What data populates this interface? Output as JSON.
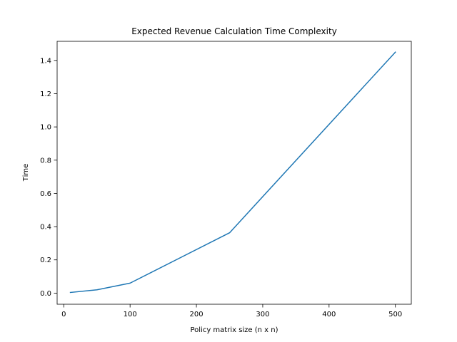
{
  "chart_data": {
    "type": "line",
    "title": "Expected Revenue Calculation Time Complexity",
    "xlabel": "Policy matrix size (n x n)",
    "ylabel": "Time",
    "xlim": [
      -10,
      524
    ],
    "ylim": [
      -0.067,
      1.515
    ],
    "xticks": [
      0,
      100,
      200,
      300,
      400,
      500
    ],
    "yticks": [
      0.0,
      0.2,
      0.4,
      0.6,
      0.8,
      1.0,
      1.2,
      1.4
    ],
    "xtick_labels": [
      "0",
      "100",
      "200",
      "300",
      "400",
      "500"
    ],
    "ytick_labels": [
      "0.0",
      "0.2",
      "0.4",
      "0.6",
      "0.8",
      "1.0",
      "1.2",
      "1.4"
    ],
    "grid": false,
    "series": [
      {
        "color": "#1f77b4",
        "x": [
          10,
          50,
          100,
          250,
          500
        ],
        "y": [
          0.004,
          0.02,
          0.06,
          0.363,
          1.45
        ]
      }
    ]
  }
}
